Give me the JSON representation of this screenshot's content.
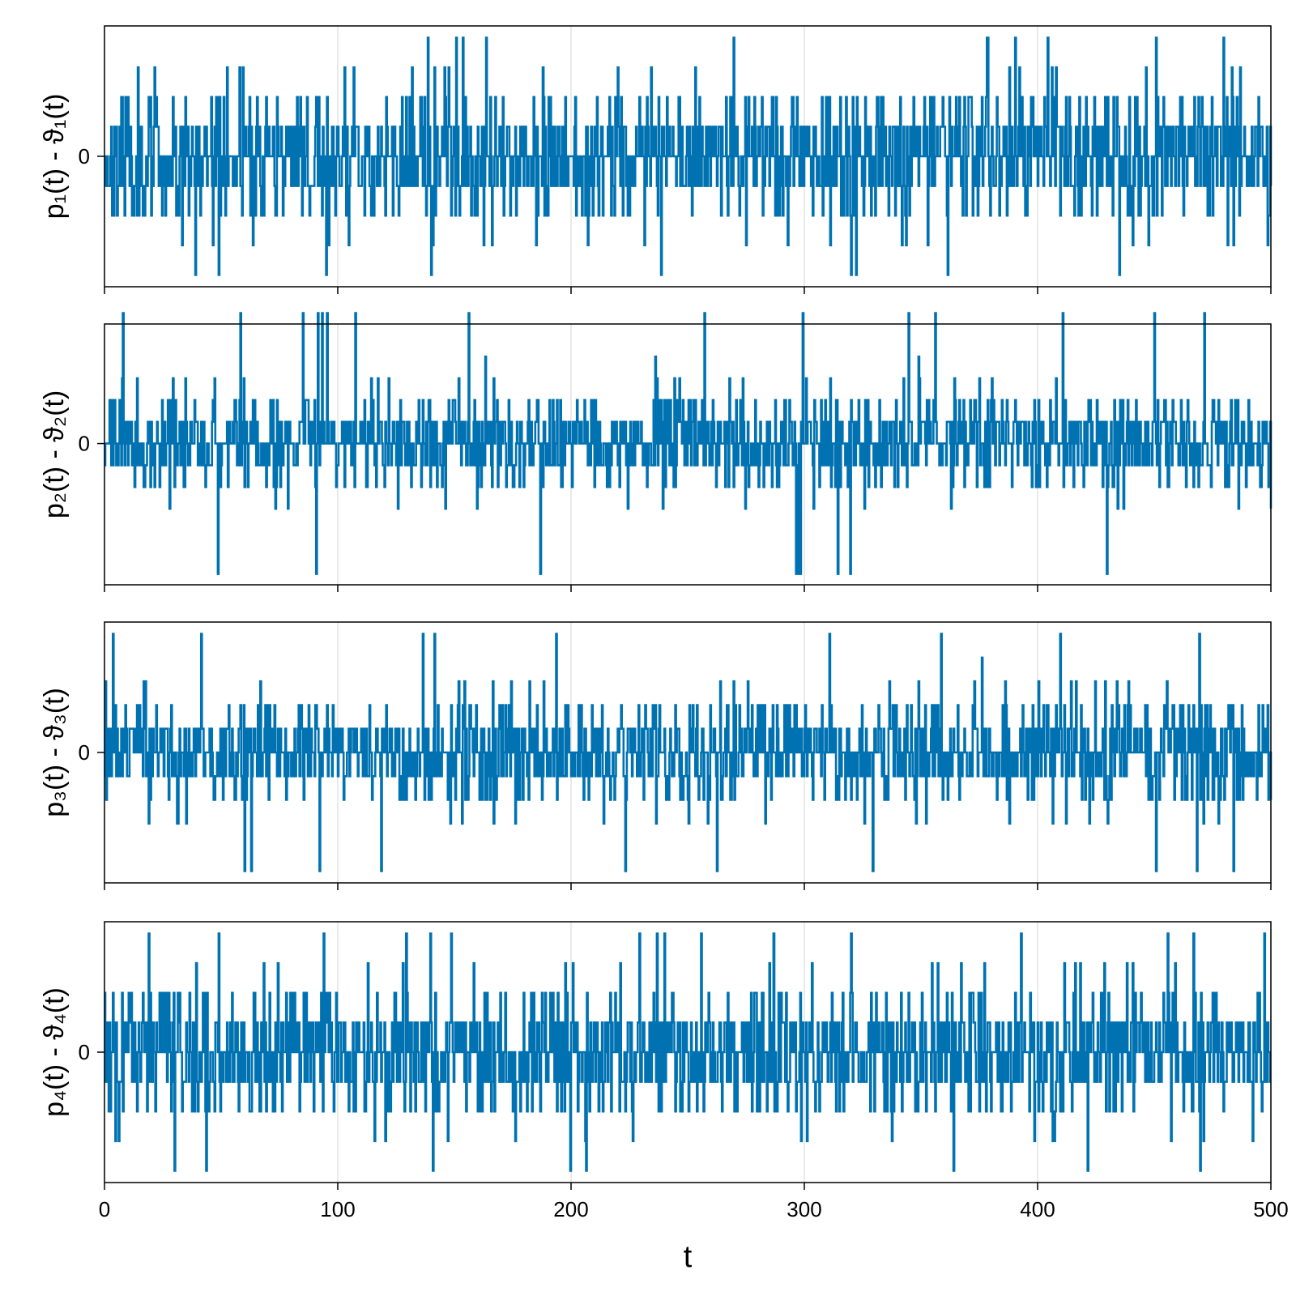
{
  "chart_data": [
    {
      "type": "line",
      "ylabel": "p₁(t) - ϑ₁(t)",
      "xlim": [
        0,
        500
      ],
      "ylim": [
        -4.4,
        4.4
      ],
      "yticks": [
        {
          "value": 0,
          "label": "0"
        }
      ],
      "xticks": [
        0,
        100,
        200,
        300,
        400,
        500
      ],
      "xtick_labels_visible": false,
      "grid": "vertical",
      "series": [
        {
          "color": "#0072b2",
          "style": "steps",
          "amplitude": 3,
          "max_level": 4,
          "seed": 11
        }
      ]
    },
    {
      "type": "line",
      "ylabel": "p₂(t) - ϑ₂(t)",
      "xlim": [
        0,
        500
      ],
      "ylim": [
        -6.5,
        5.5
      ],
      "yticks": [
        {
          "value": 0,
          "label": "0"
        }
      ],
      "xticks": [
        0,
        100,
        200,
        300,
        400,
        500
      ],
      "xtick_labels_visible": false,
      "grid": "vertical",
      "series": [
        {
          "color": "#0072b2",
          "style": "steps",
          "amplitude": 3,
          "max_level": 6,
          "seed": 23
        }
      ]
    },
    {
      "type": "line",
      "ylabel": "p₃(t) - ϑ₃(t)",
      "xlim": [
        0,
        500
      ],
      "ylim": [
        -5.5,
        5.5
      ],
      "yticks": [
        {
          "value": 0,
          "label": "0"
        }
      ],
      "xticks": [
        0,
        100,
        200,
        300,
        400,
        500
      ],
      "xtick_labels_visible": false,
      "grid": "vertical",
      "series": [
        {
          "color": "#0072b2",
          "style": "steps",
          "amplitude": 3,
          "max_level": 5,
          "seed": 37
        }
      ]
    },
    {
      "type": "line",
      "ylabel": "p₄(t) - ϑ₄(t)",
      "xlabel": "t",
      "xlim": [
        0,
        500
      ],
      "ylim": [
        -4.4,
        4.4
      ],
      "yticks": [
        {
          "value": 0,
          "label": "0"
        }
      ],
      "xticks": [
        0,
        100,
        200,
        300,
        400,
        500
      ],
      "xtick_labels": [
        "0",
        "100",
        "200",
        "300",
        "400",
        "500"
      ],
      "xtick_labels_visible": true,
      "grid": "vertical",
      "series": [
        {
          "color": "#0072b2",
          "style": "steps",
          "amplitude": 3,
          "max_level": 4,
          "seed": 51
        }
      ]
    }
  ]
}
